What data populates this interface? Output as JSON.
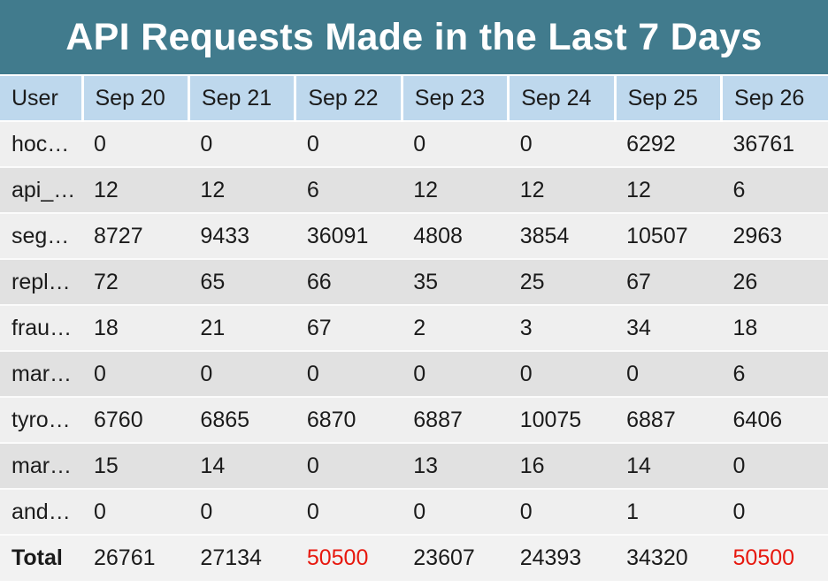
{
  "chart_data": {
    "type": "table",
    "title": "API Requests Made in the Last 7 Days",
    "columns": [
      "User",
      "Sep 20",
      "Sep 21",
      "Sep 22",
      "Sep 23",
      "Sep 24",
      "Sep 25",
      "Sep 26"
    ],
    "rows": [
      {
        "user": "hoc…",
        "values": [
          0,
          0,
          0,
          0,
          0,
          6292,
          36761
        ]
      },
      {
        "user": "api_…",
        "values": [
          12,
          12,
          6,
          12,
          12,
          12,
          6
        ]
      },
      {
        "user": "seg…",
        "values": [
          8727,
          9433,
          36091,
          4808,
          3854,
          10507,
          2963
        ]
      },
      {
        "user": "repl…",
        "values": [
          72,
          65,
          66,
          35,
          25,
          67,
          26
        ]
      },
      {
        "user": "frau…",
        "values": [
          18,
          21,
          67,
          2,
          3,
          34,
          18
        ]
      },
      {
        "user": "mar…",
        "values": [
          0,
          0,
          0,
          0,
          0,
          0,
          6
        ]
      },
      {
        "user": "tyro…",
        "values": [
          6760,
          6865,
          6870,
          6887,
          10075,
          6887,
          6406
        ]
      },
      {
        "user": "mar…",
        "values": [
          15,
          14,
          0,
          13,
          16,
          14,
          0
        ]
      },
      {
        "user": "and…",
        "values": [
          0,
          0,
          0,
          0,
          0,
          1,
          0
        ]
      }
    ],
    "total_row": {
      "label": "Total",
      "values": [
        26761,
        27134,
        50500,
        23607,
        24393,
        34320,
        50500
      ],
      "highlighted_value_indices": [
        2,
        6
      ]
    }
  },
  "colors": {
    "title_bar_bg": "#417b8d",
    "title_text": "#ffffff",
    "header_bg": "#bed8ed",
    "row_light_bg": "#efefef",
    "row_dark_bg": "#e1e1e1",
    "total_row_bg": "#f2f2f2",
    "text": "#1b1b1b",
    "highlight_red": "#e7180e"
  }
}
